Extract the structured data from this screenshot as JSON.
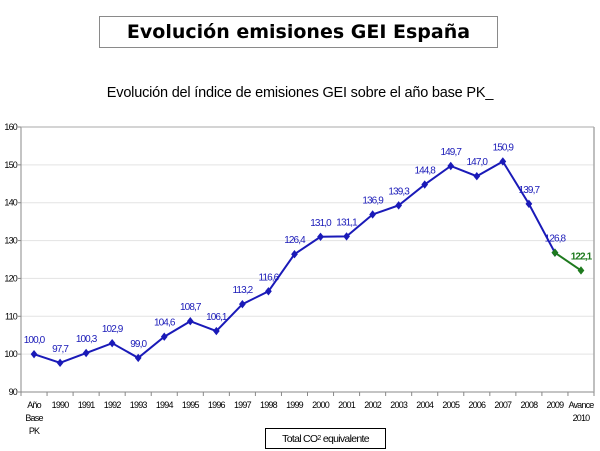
{
  "header": {
    "title": "Evolución emisiones GEI España"
  },
  "chart_data": {
    "type": "line",
    "title": "Evolución del índice de emisiones GEI sobre el año base PK_",
    "xlabel": "",
    "ylabel": "",
    "ylim": [
      90,
      160
    ],
    "yticks": [
      90,
      100,
      110,
      120,
      130,
      140,
      150,
      160
    ],
    "grid": true,
    "legend": {
      "label_prefix": "Total CO",
      "label_sub": "2",
      "label_suffix": " equivalente",
      "placement": "bottom-center"
    },
    "categories": [
      [
        "Año",
        "Base",
        "PK"
      ],
      [
        "1990"
      ],
      [
        "1991"
      ],
      [
        "1992"
      ],
      [
        "1993"
      ],
      [
        "1994"
      ],
      [
        "1995"
      ],
      [
        "1996"
      ],
      [
        "1997"
      ],
      [
        "1998"
      ],
      [
        "1999"
      ],
      [
        "2000"
      ],
      [
        "2001"
      ],
      [
        "2002"
      ],
      [
        "2003"
      ],
      [
        "2004"
      ],
      [
        "2005"
      ],
      [
        "2006"
      ],
      [
        "2007"
      ],
      [
        "2008"
      ],
      [
        "2009"
      ],
      [
        "Avance",
        "2010"
      ]
    ],
    "series": [
      {
        "name": "Total CO2 equivalente",
        "color": "#1a1ab8",
        "start_index": 0,
        "values": [
          100.0,
          97.7,
          100.3,
          102.9,
          99.0,
          104.6,
          108.7,
          106.1,
          113.2,
          116.6,
          126.4,
          131.0,
          131.1,
          136.9,
          139.3,
          144.8,
          149.7,
          147.0,
          150.9,
          139.7,
          126.8
        ],
        "labels": [
          "100,0",
          "97,7",
          "100,3",
          "102,9",
          "99,0",
          "104,6",
          "108,7",
          "106,1",
          "113,2",
          "116,6",
          "126,4",
          "131,0",
          "131,1",
          "136,9",
          "139,3",
          "144,8",
          "149,7",
          "147,0",
          "150,9",
          "139,7",
          "126,8"
        ]
      },
      {
        "name": "Avance 2010",
        "color": "#1e7a1e",
        "start_index": 20,
        "values": [
          126.8,
          122.1
        ],
        "labels": [
          null,
          "122,1"
        ]
      }
    ]
  }
}
